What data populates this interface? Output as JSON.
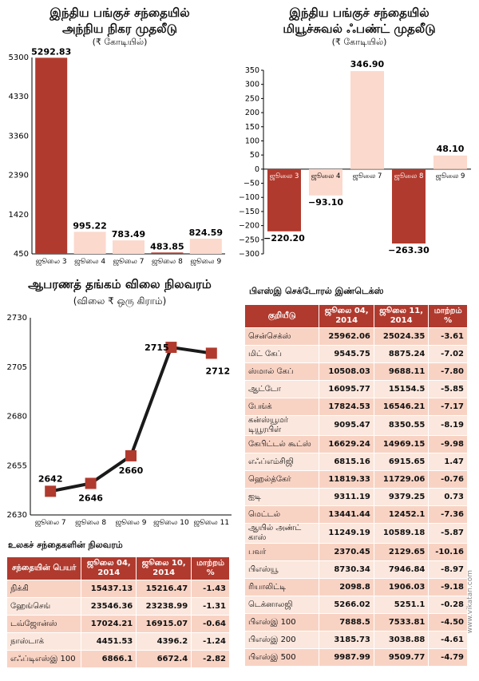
{
  "chart_data": [
    {
      "type": "bar",
      "title": "இந்திய பங்குச் சந்தையில்",
      "subtitle": "அந்நிய நிகர முதலீடு",
      "unit": "(₹ கோடியில்)",
      "categories": [
        "ஜூலை 3",
        "ஜூலை 4",
        "ஜூலை 7",
        "ஜூலை 8",
        "ஜூலை 9"
      ],
      "values": [
        5292.83,
        995.22,
        783.49,
        483.85,
        824.59
      ],
      "value_labels": [
        "5292.83",
        "995.22",
        "783.49",
        "483.85",
        "824.59"
      ],
      "ylim": [
        450,
        5300
      ],
      "yticks": [
        "450",
        "1420",
        "2390",
        "3360",
        "4330",
        "5300"
      ]
    },
    {
      "type": "bar",
      "title": "இந்திய பங்குச் சந்தையில்",
      "subtitle": "மியூச்சுவல் ஃபண்ட் முதலீடு",
      "unit": "(₹ கோடியில்)",
      "categories": [
        "ஜூலை 3",
        "ஜூலை 4",
        "ஜூலை 7",
        "ஜூலை 8",
        "ஜூலை 9"
      ],
      "values": [
        -220.2,
        -93.1,
        346.9,
        -263.3,
        48.1
      ],
      "value_labels": [
        "−220.20",
        "−93.10",
        "346.90",
        "−263.30",
        "48.10"
      ],
      "ylim": [
        -300,
        350
      ],
      "yticks": [
        "−300",
        "−250",
        "−200",
        "−150",
        "−100",
        "−50",
        "0",
        "50",
        "100",
        "150",
        "200",
        "250",
        "300",
        "350"
      ]
    },
    {
      "type": "line",
      "title": "ஆபரணத் தங்கம் விலை நிலவரம்",
      "unit": "(விலை ₹ ஒரு கிராம்)",
      "categories": [
        "ஜூலை 7",
        "ஜூலை 8",
        "ஜூலை 9",
        "ஜூலை 10",
        "ஜூலை 11"
      ],
      "values": [
        2642,
        2646,
        2660,
        2715,
        2712
      ],
      "value_labels": [
        "2642",
        "2646",
        "2660",
        "2715",
        "2712"
      ],
      "ylim": [
        2630,
        2730
      ],
      "yticks": [
        "2630",
        "2655",
        "2680",
        "2705",
        "2730"
      ]
    },
    {
      "type": "table",
      "title": "உலகச் சந்தைகளின் நிலவரம்",
      "headers": [
        "சந்தையின் பெயர்",
        "ஜூலை 04, 2014",
        "ஜூலை 10, 2014",
        "மாற்றம் %"
      ],
      "rows": [
        [
          "நிக்கி",
          "15437.13",
          "15216.47",
          "-1.43"
        ],
        [
          "ஹேங்செங்",
          "23546.36",
          "23238.99",
          "-1.31"
        ],
        [
          "டவ்ஜோன்ஸ்",
          "17024.21",
          "16915.07",
          "-0.64"
        ],
        [
          "நாஸ்டாக்",
          "4451.53",
          "4396.2",
          "-1.24"
        ],
        [
          "எஃப்டிஎஸ்இ 100",
          "6866.1",
          "6672.4",
          "-2.82"
        ]
      ]
    },
    {
      "type": "table",
      "title": "பிஎஸ்இ செக்டோரல் இண்டெக்ஸ்",
      "headers": [
        "குறியீடு",
        "ஜூலை 04, 2014",
        "ஜூலை 11, 2014",
        "மாற்றம் %"
      ],
      "rows": [
        [
          "சென்செக்ஸ்",
          "25962.06",
          "25024.35",
          "-3.61"
        ],
        [
          "மிட் கேப்",
          "9545.75",
          "8875.24",
          "-7.02"
        ],
        [
          "ஸ்மால் கேப்",
          "10508.03",
          "9688.11",
          "-7.80"
        ],
        [
          "ஆட்டோ",
          "16095.77",
          "15154.5",
          "-5.85"
        ],
        [
          "பேங்க்",
          "17824.53",
          "16546.21",
          "-7.17"
        ],
        [
          "கன்ஸ்யூமர் டியூரபிள்",
          "9095.47",
          "8350.55",
          "-8.19"
        ],
        [
          "கேபிட்டல் கூட்ஸ்",
          "16629.24",
          "14969.15",
          "-9.98"
        ],
        [
          "எஃப்எம்சிஜி",
          "6815.16",
          "6915.65",
          "1.47"
        ],
        [
          "ஹெல்த்கேர்",
          "11819.33",
          "11729.06",
          "-0.76"
        ],
        [
          "ஐடி",
          "9311.19",
          "9379.25",
          "0.73"
        ],
        [
          "மெட்டல்",
          "13441.44",
          "12452.1",
          "-7.36"
        ],
        [
          "ஆயில் அண்ட் காஸ்",
          "11249.19",
          "10589.18",
          "-5.87"
        ],
        [
          "பவர்",
          "2370.45",
          "2129.65",
          "-10.16"
        ],
        [
          "பிஎஸ்யூ",
          "8730.34",
          "7946.84",
          "-8.97"
        ],
        [
          "ரியாலிட்டி",
          "2098.8",
          "1906.03",
          "-9.18"
        ],
        [
          "டெக்னாலஜி",
          "5266.02",
          "5251.1",
          "-0.28"
        ],
        [
          "பிஎஸ்இ 100",
          "7888.5",
          "7533.81",
          "-4.50"
        ],
        [
          "பிஎஸ்இ 200",
          "3185.73",
          "3038.88",
          "-4.61"
        ],
        [
          "பிஎஸ்இ 500",
          "9987.99",
          "9509.77",
          "-4.79"
        ]
      ]
    }
  ],
  "credit": "www.vikatan.com",
  "colors": {
    "dark": "#b03a2e",
    "light": "#fbd9cc",
    "line": "#1a1a1a"
  }
}
